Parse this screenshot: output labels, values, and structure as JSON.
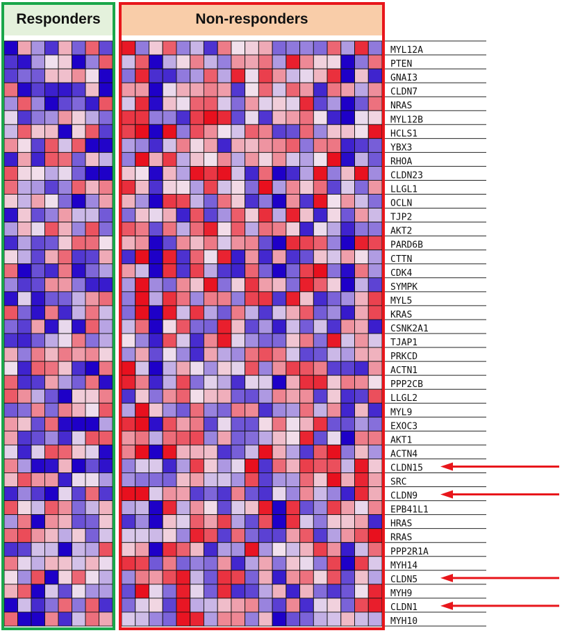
{
  "chart_data": {
    "type": "heatmap",
    "groups": [
      {
        "name": "Responders",
        "n_samples": 8,
        "border_color": "#1aa64a",
        "header_bg": "#e4f1dc"
      },
      {
        "name": "Non-responders",
        "n_samples": 19,
        "border_color": "#e8161b",
        "header_bg": "#f9cda9"
      }
    ],
    "genes": [
      "MYL12A",
      "PTEN",
      "GNAI3",
      "CLDN7",
      "NRAS",
      "MYL12B",
      "HCLS1",
      "YBX3",
      "RHOA",
      "CLDN23",
      "LLGL1",
      "OCLN",
      "TJP2",
      "AKT2",
      "PARD6B",
      "CTTN",
      "CDK4",
      "SYMPK",
      "MYL5",
      "KRAS",
      "CSNK2A1",
      "TJAP1",
      "PRKCD",
      "ACTN1",
      "PPP2CB",
      "LLGL2",
      "MYL9",
      "EXOC3",
      "AKT1",
      "ACTN4",
      "CLDN15",
      "SRC",
      "CLDN9",
      "EPB41L1",
      "HRAS",
      "RRAS",
      "PPP2R1A",
      "MYH14",
      "CLDN5",
      "MYH9",
      "CLDN1",
      "MYH10"
    ],
    "highlighted_genes": [
      "CLDN15",
      "CLDN9",
      "CLDN5",
      "CLDN1"
    ],
    "arrow_color": "#e8161b",
    "colormap": {
      "low": "#1e00c8",
      "mid": "#f2e2ee",
      "high": "#e8101e"
    },
    "value_scale": "z-score, -2 (blue) to 2 (red)"
  }
}
